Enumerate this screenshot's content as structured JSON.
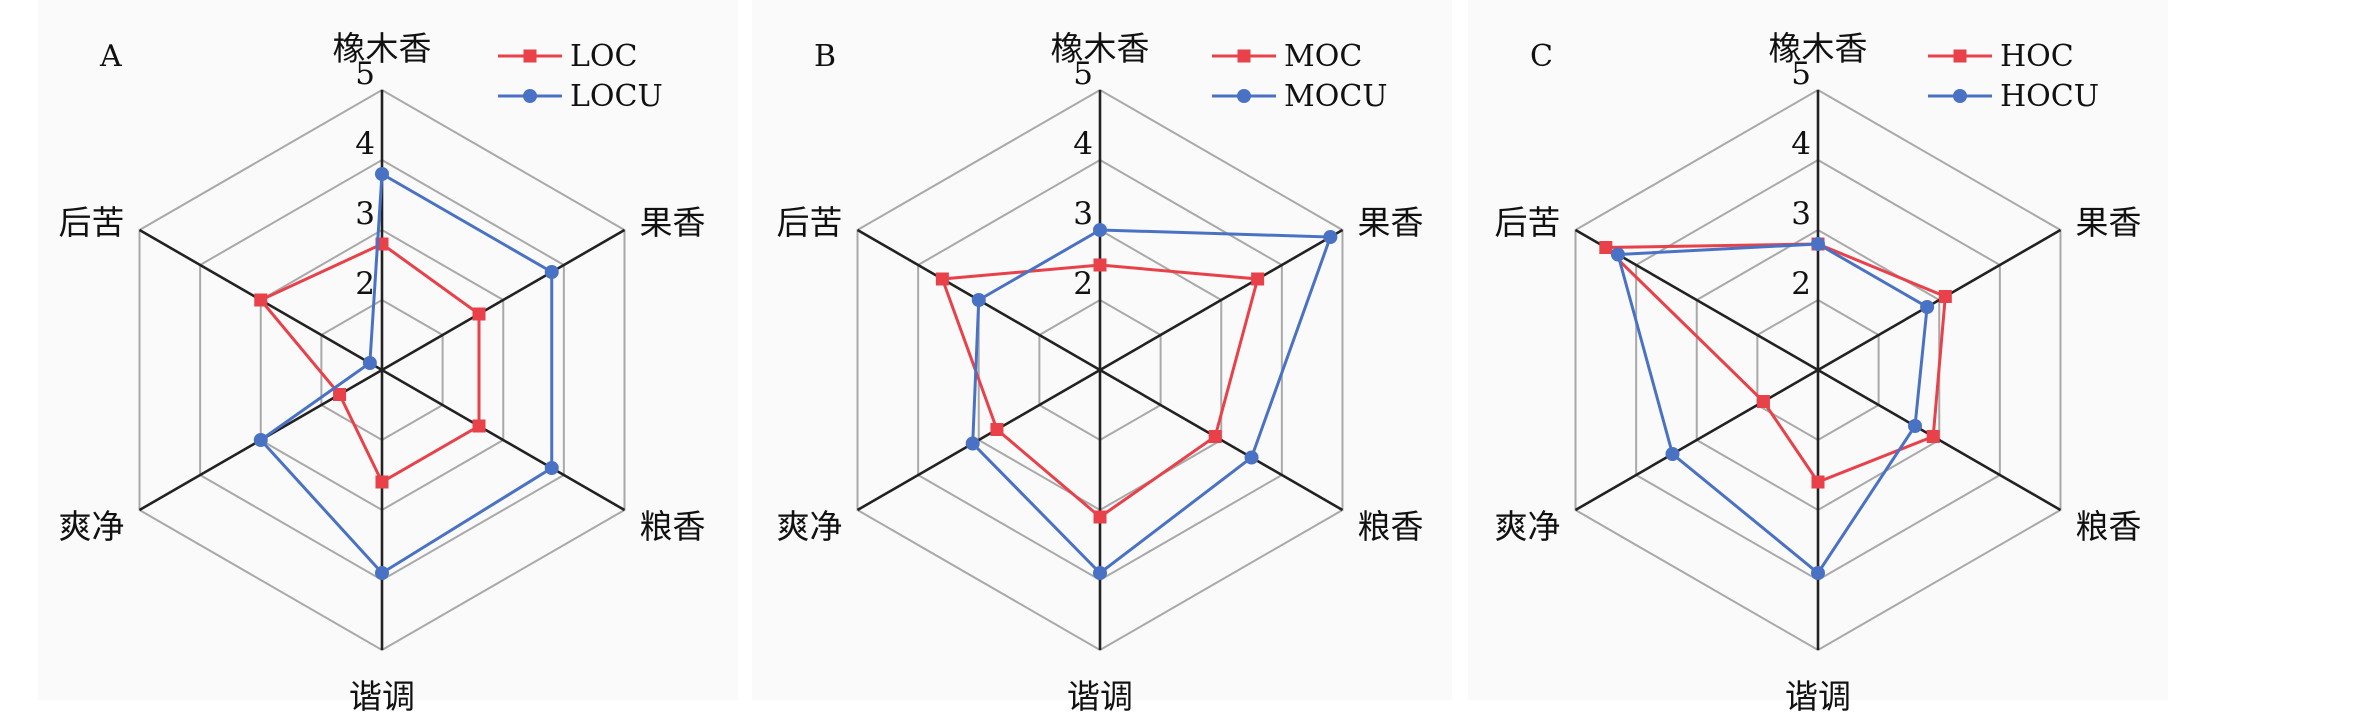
{
  "chart_data": [
    {
      "type": "radar",
      "panel_label": "A",
      "axes": [
        "橡木香",
        "果香",
        "粮香",
        "谐调",
        "爽净",
        "后苦"
      ],
      "r_range": [
        1,
        5
      ],
      "r_ticks": [
        2,
        3,
        4,
        5
      ],
      "legend_position": "top-right",
      "grid": true,
      "series": [
        {
          "name": "LOC",
          "color": "#e8414a",
          "marker": "square",
          "values": [
            2.8,
            2.6,
            2.6,
            2.6,
            1.7,
            3.0
          ]
        },
        {
          "name": "LOCU",
          "color": "#4a72c4",
          "marker": "circle",
          "values": [
            3.8,
            3.8,
            3.8,
            3.9,
            3.0,
            1.2
          ]
        }
      ]
    },
    {
      "type": "radar",
      "panel_label": "B",
      "axes": [
        "橡木香",
        "果香",
        "粮香",
        "谐调",
        "爽净",
        "后苦"
      ],
      "r_range": [
        1,
        5
      ],
      "r_ticks": [
        2,
        3,
        4,
        5
      ],
      "legend_position": "top-right",
      "grid": true,
      "series": [
        {
          "name": "MOC",
          "color": "#e8414a",
          "marker": "square",
          "values": [
            2.5,
            3.6,
            2.9,
            3.1,
            2.7,
            3.6
          ]
        },
        {
          "name": "MOCU",
          "color": "#4a72c4",
          "marker": "circle",
          "values": [
            3.0,
            4.8,
            3.5,
            3.9,
            3.1,
            3.0
          ]
        }
      ]
    },
    {
      "type": "radar",
      "panel_label": "C",
      "axes": [
        "橡木香",
        "果香",
        "粮香",
        "谐调",
        "爽净",
        "后苦"
      ],
      "r_range": [
        1,
        5
      ],
      "r_ticks": [
        2,
        3,
        4,
        5
      ],
      "legend_position": "top-right",
      "grid": true,
      "series": [
        {
          "name": "HOC",
          "color": "#e8414a",
          "marker": "square",
          "values": [
            2.8,
            3.1,
            2.9,
            2.6,
            1.9,
            4.5
          ]
        },
        {
          "name": "HOCU",
          "color": "#4a72c4",
          "marker": "circle",
          "values": [
            2.8,
            2.8,
            2.6,
            3.9,
            3.4,
            4.3
          ]
        }
      ]
    }
  ]
}
